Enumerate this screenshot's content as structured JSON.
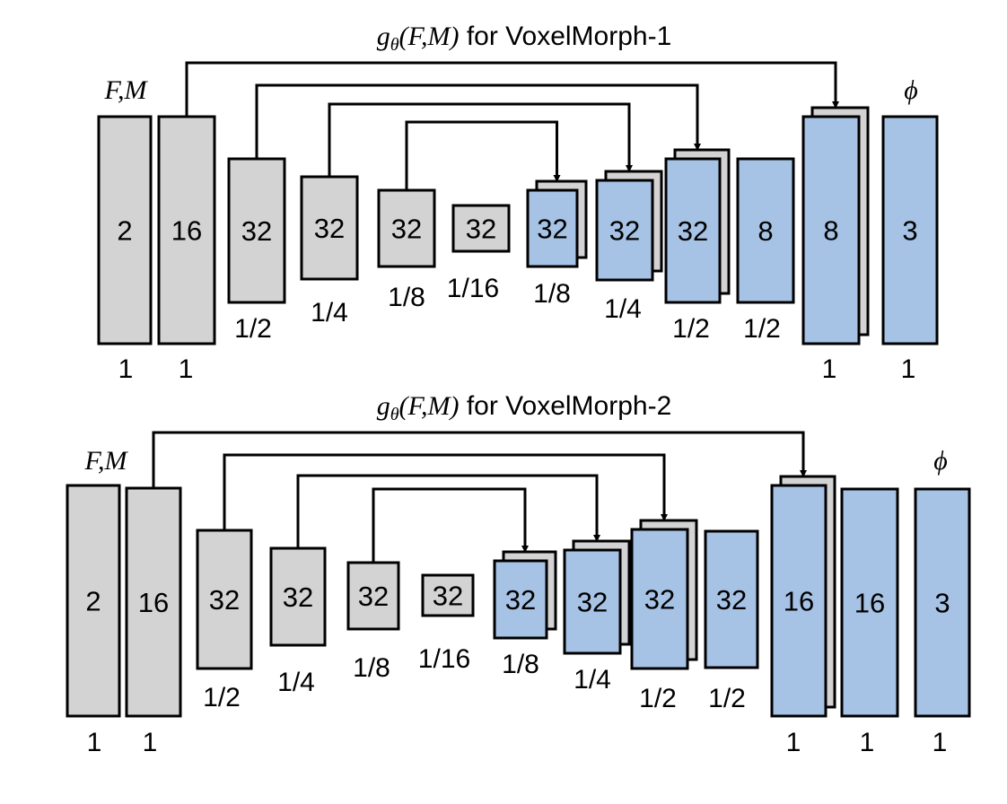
{
  "colors": {
    "encoder": "#d3d3d3",
    "decoder": "#a6c2e4",
    "stroke": "#000000"
  },
  "diagrams": [
    {
      "title_func": "g",
      "title_sub": "θ",
      "title_args": "(F,M)",
      "title_suffix": " for VoxelMorph-1",
      "input_label": "F,M",
      "output_label": "ϕ",
      "blocks": [
        {
          "label": "2",
          "scale": "1",
          "color": "encoder",
          "stacked": false
        },
        {
          "label": "16",
          "scale": "1",
          "color": "encoder",
          "stacked": false
        },
        {
          "label": "32",
          "scale": "1/2",
          "color": "encoder",
          "stacked": false
        },
        {
          "label": "32",
          "scale": "1/4",
          "color": "encoder",
          "stacked": false
        },
        {
          "label": "32",
          "scale": "1/8",
          "color": "encoder",
          "stacked": false
        },
        {
          "label": "32",
          "scale": "1/16",
          "color": "encoder",
          "stacked": false
        },
        {
          "label": "32",
          "scale": "1/8",
          "color": "decoder",
          "stacked": true
        },
        {
          "label": "32",
          "scale": "1/4",
          "color": "decoder",
          "stacked": true
        },
        {
          "label": "32",
          "scale": "1/2",
          "color": "decoder",
          "stacked": true
        },
        {
          "label": "8",
          "scale": "1/2",
          "color": "decoder",
          "stacked": false
        },
        {
          "label": "8",
          "scale": "1",
          "color": "decoder",
          "stacked": true
        },
        {
          "label": "3",
          "scale": "1",
          "color": "decoder",
          "stacked": false
        }
      ]
    },
    {
      "title_func": "g",
      "title_sub": "θ",
      "title_args": "(F,M)",
      "title_suffix": " for VoxelMorph-2",
      "input_label": "F,M",
      "output_label": "ϕ",
      "blocks": [
        {
          "label": "2",
          "scale": "1",
          "color": "encoder",
          "stacked": false
        },
        {
          "label": "16",
          "scale": "1",
          "color": "encoder",
          "stacked": false
        },
        {
          "label": "32",
          "scale": "1/2",
          "color": "encoder",
          "stacked": false
        },
        {
          "label": "32",
          "scale": "1/4",
          "color": "encoder",
          "stacked": false
        },
        {
          "label": "32",
          "scale": "1/8",
          "color": "encoder",
          "stacked": false
        },
        {
          "label": "32",
          "scale": "1/16",
          "color": "encoder",
          "stacked": false
        },
        {
          "label": "32",
          "scale": "1/8",
          "color": "decoder",
          "stacked": true
        },
        {
          "label": "32",
          "scale": "1/4",
          "color": "decoder",
          "stacked": true
        },
        {
          "label": "32",
          "scale": "1/2",
          "color": "decoder",
          "stacked": true
        },
        {
          "label": "32",
          "scale": "1/2",
          "color": "decoder",
          "stacked": false
        },
        {
          "label": "16",
          "scale": "1",
          "color": "decoder",
          "stacked": true
        },
        {
          "label": "16",
          "scale": "1",
          "color": "decoder",
          "stacked": false
        },
        {
          "label": "3",
          "scale": "1",
          "color": "decoder",
          "stacked": false
        }
      ]
    }
  ]
}
